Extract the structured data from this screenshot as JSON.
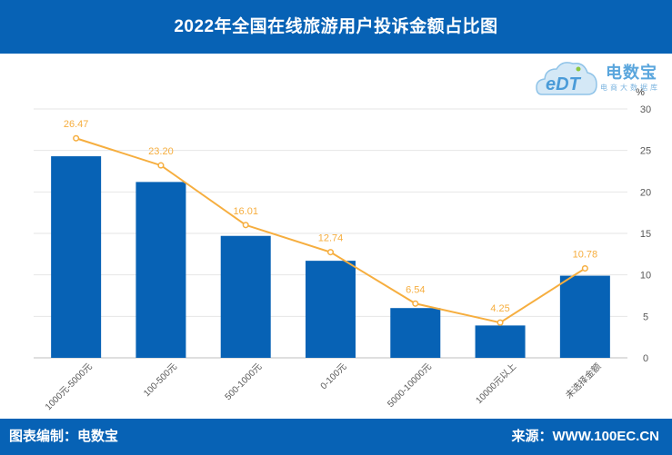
{
  "title": "2022年全国在线旅游用户投诉金额占比图",
  "footer": {
    "left": "图表编制：电数宝",
    "right": "来源：WWW.100EC.CN"
  },
  "logo": {
    "name": "电数宝",
    "sub": "电商大数据库",
    "mark": "eDT"
  },
  "colors": {
    "header": "#0762b5",
    "bar": "#0762b5",
    "line": "#f6ae3f",
    "grid": "#e6e6e6"
  },
  "chart_data": {
    "type": "bar",
    "categories": [
      "1000元-5000元",
      "100-500元",
      "500-1000元",
      "0-100元",
      "5000-10000元",
      "10000元以上",
      "未选择金额"
    ],
    "series": [
      {
        "type": "bar",
        "values": [
          24.3,
          21.2,
          14.7,
          11.7,
          6.0,
          3.9,
          9.9
        ]
      },
      {
        "type": "line",
        "values": [
          26.47,
          23.2,
          16.01,
          12.74,
          6.54,
          4.25,
          10.78
        ],
        "labels": [
          "26.47",
          "23.20",
          "16.01",
          "12.74",
          "6.54",
          "4.25",
          "10.78"
        ]
      }
    ],
    "y_axis": {
      "side": "right",
      "unit": "%",
      "ylim": [
        0,
        30
      ],
      "ticks": [
        "0",
        "5",
        "10",
        "15",
        "20",
        "25",
        "30"
      ]
    },
    "grid": true
  }
}
